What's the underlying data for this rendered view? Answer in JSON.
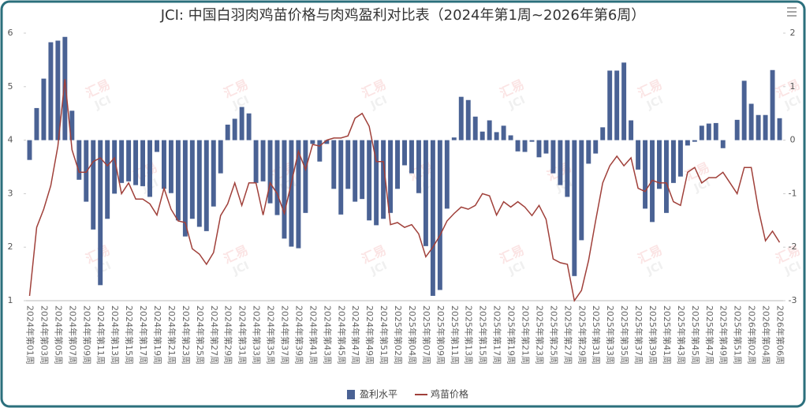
{
  "chart_data": {
    "type": "bar-line",
    "title": "JCI: 中国白羽肉鸡苗价格与肉鸡盈利对比表（2024年第1周~2026年第6周）",
    "watermark": [
      "汇易",
      "JCI"
    ],
    "categories": [
      "2024年第01周",
      null,
      "2024年第03周",
      null,
      "2024年第05周",
      null,
      "2024年第07周",
      null,
      "2024年第09周",
      null,
      "2024年第11周",
      null,
      "2024年第13周",
      null,
      "2024年第15周",
      null,
      "2024年第17周",
      null,
      "2024年第19周",
      null,
      "2024年第21周",
      null,
      "2024年第23周",
      null,
      "2024年第25周",
      null,
      "2024年第27周",
      null,
      "2024年第29周",
      null,
      "2024年第31周",
      null,
      "2024年第33周",
      null,
      "2024年第35周",
      null,
      "2024年第37周",
      null,
      "2024年第39周",
      null,
      "2024年第41周",
      null,
      "2024年第43周",
      null,
      "2024年第45周",
      null,
      "2024年第47周",
      null,
      "2024年第49周",
      null,
      "2024年第51周",
      null,
      "2025年第02周",
      null,
      "2025年第04周",
      null,
      "2025年第07周",
      null,
      "2025年第09周",
      null,
      "2025年第11周",
      null,
      "2025年第13周",
      null,
      "2025年第15周",
      null,
      "2025年第17周",
      null,
      "2025年第19周",
      null,
      "2025年第21周",
      null,
      "2025年第23周",
      null,
      "2025年第25周",
      null,
      "2025年第27周",
      null,
      "2025年第29周",
      null,
      "2025年第31周",
      null,
      "2025年第33周",
      null,
      "2025年第35周",
      null,
      "2025年第37周",
      null,
      "2025年第39周",
      null,
      "2025年第41周",
      null,
      "2025年第43周",
      null,
      "2025年第45周",
      null,
      "2025年第47周",
      null,
      "2025年第49周",
      null,
      "2025年第51周",
      null,
      "2026年第02周",
      null,
      "2026年第04周",
      null,
      "2026年第06周"
    ],
    "series": [
      {
        "name": "盈利水平",
        "type": "bar",
        "axis": "y2",
        "color": "#4a6294",
        "values": [
          -0.37,
          0.6,
          1.15,
          1.83,
          1.86,
          1.93,
          0.55,
          -0.74,
          -1.15,
          -1.67,
          -2.71,
          -1.47,
          -1.0,
          -0.8,
          -0.77,
          -0.84,
          -0.86,
          -1.06,
          -0.22,
          -0.91,
          -0.99,
          -1.5,
          -1.8,
          -1.47,
          -1.62,
          -1.7,
          -1.24,
          -0.62,
          0.29,
          0.4,
          0.62,
          0.5,
          -0.8,
          -0.77,
          -1.18,
          -1.4,
          -1.84,
          -1.99,
          -2.02,
          -1.36,
          -0.07,
          -0.4,
          -0.07,
          -0.91,
          -1.39,
          -0.91,
          -1.15,
          -1.1,
          -1.5,
          -1.59,
          -1.47,
          -1.36,
          -0.91,
          -0.47,
          -0.62,
          -0.99,
          -1.98,
          -2.91,
          -2.8,
          -1.28,
          0.05,
          0.81,
          0.75,
          0.44,
          0.16,
          0.37,
          0.15,
          0.27,
          0.09,
          -0.21,
          -0.22,
          -0.03,
          -0.32,
          -0.25,
          -0.62,
          -0.84,
          -1.06,
          -2.54,
          -1.87,
          -0.44,
          -0.25,
          0.24,
          1.3,
          1.3,
          1.45,
          0.37,
          -0.55,
          -1.28,
          -1.53,
          -0.91,
          -1.36,
          -0.8,
          -0.68,
          -0.1,
          -0.03,
          0.27,
          0.31,
          0.32,
          -0.15,
          0,
          0.38,
          1.11,
          0.68,
          0.47,
          0.47,
          1.31,
          0.41
        ]
      },
      {
        "name": "鸡苗价格",
        "type": "line",
        "axis": "y",
        "color": "#a0403a",
        "values": [
          1.09,
          2.37,
          2.71,
          3.15,
          3.89,
          5.14,
          3.82,
          3.4,
          3.4,
          3.6,
          3.67,
          3.52,
          3.67,
          3.0,
          3.2,
          2.9,
          2.9,
          2.81,
          2.6,
          3.1,
          2.71,
          2.49,
          2.46,
          1.97,
          1.87,
          1.68,
          1.9,
          2.59,
          2.81,
          3.2,
          2.78,
          3.2,
          3.2,
          2.6,
          3.2,
          3.0,
          2.63,
          3.2,
          3.79,
          3.45,
          3.92,
          3.89,
          4.0,
          4.04,
          4.04,
          4.08,
          4.41,
          4.5,
          4.26,
          3.6,
          3.6,
          2.42,
          2.46,
          2.37,
          2.42,
          2.25,
          1.82,
          2.0,
          2.22,
          2.49,
          2.63,
          2.75,
          2.71,
          2.78,
          3.0,
          2.96,
          2.6,
          2.85,
          2.75,
          2.85,
          2.75,
          2.59,
          2.78,
          2.52,
          1.78,
          1.71,
          1.68,
          1.0,
          1.19,
          1.75,
          2.49,
          3.2,
          3.52,
          3.7,
          3.52,
          3.67,
          3.1,
          3.04,
          3.25,
          3.2,
          3.2,
          2.85,
          2.78,
          3.4,
          3.49,
          3.2,
          3.3,
          3.3,
          3.4,
          3.2,
          3.0,
          3.49,
          3.49,
          2.71,
          2.12,
          2.3,
          2.09
        ]
      }
    ],
    "ylim": [
      1,
      6
    ],
    "yticks": [
      1,
      2,
      3,
      4,
      5,
      6
    ],
    "y2lim": [
      -3,
      2
    ],
    "y2ticks": [
      -3,
      -2,
      -1,
      0,
      1,
      2
    ],
    "legend": "bottom"
  }
}
